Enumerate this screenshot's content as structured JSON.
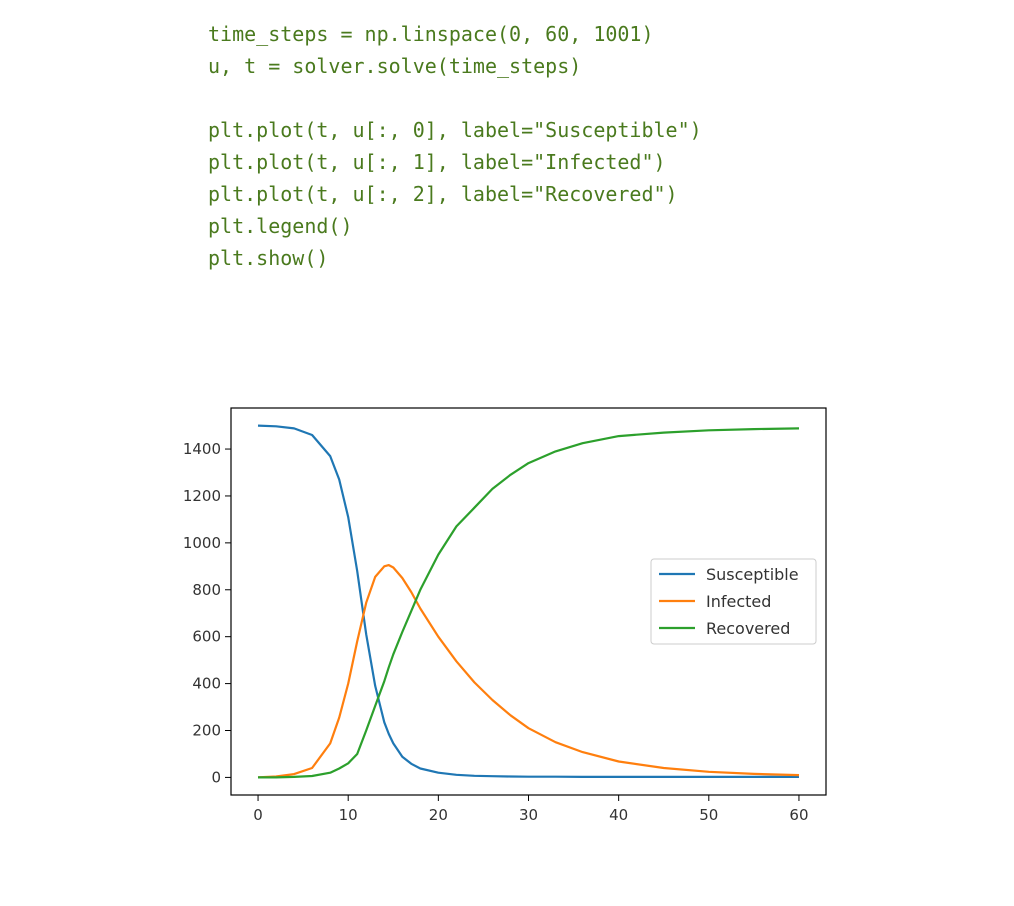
{
  "code": {
    "lines": [
      "time_steps = np.linspace(0, 60, 1001)",
      "u, t = solver.solve(time_steps)",
      "",
      "plt.plot(t, u[:, 0], label=\"Susceptible\")",
      "plt.plot(t, u[:, 1], label=\"Infected\")",
      "plt.plot(t, u[:, 2], label=\"Recovered\")",
      "plt.legend()",
      "plt.show()"
    ],
    "color": "#4a7a1e"
  },
  "chart_data": {
    "type": "line",
    "title": "",
    "xlabel": "",
    "ylabel": "",
    "xlim": [
      -3,
      63
    ],
    "ylim": [
      -75,
      1575
    ],
    "xticks": [
      0,
      10,
      20,
      30,
      40,
      50,
      60
    ],
    "yticks": [
      0,
      200,
      400,
      600,
      800,
      1000,
      1200,
      1400
    ],
    "grid": false,
    "legend_position": "center-right",
    "x": [
      0,
      2,
      4,
      6,
      8,
      9,
      10,
      11,
      12,
      13,
      14,
      14.5,
      15,
      16,
      17,
      18,
      20,
      22,
      24,
      26,
      28,
      30,
      33,
      36,
      40,
      45,
      50,
      55,
      60
    ],
    "series": [
      {
        "name": "Susceptible",
        "color": "#1f77b4",
        "values": [
          1500,
          1497,
          1488,
          1460,
          1370,
          1270,
          1110,
          880,
          610,
          390,
          235,
          185,
          145,
          88,
          58,
          38,
          20,
          11,
          7,
          5,
          4,
          3,
          3,
          2,
          2,
          2,
          2,
          2,
          2
        ]
      },
      {
        "name": "Infected",
        "color": "#ff7f0e",
        "values": [
          0,
          4,
          14,
          40,
          145,
          255,
          400,
          580,
          745,
          855,
          900,
          905,
          895,
          850,
          790,
          720,
          600,
          495,
          405,
          330,
          265,
          210,
          150,
          108,
          68,
          40,
          24,
          15,
          10
        ]
      },
      {
        "name": "Recovered",
        "color": "#2ca02c",
        "values": [
          0,
          0,
          2,
          6,
          20,
          38,
          60,
          100,
          200,
          305,
          410,
          470,
          525,
          620,
          710,
          800,
          950,
          1070,
          1150,
          1230,
          1290,
          1340,
          1390,
          1425,
          1455,
          1470,
          1480,
          1485,
          1488
        ]
      }
    ]
  }
}
